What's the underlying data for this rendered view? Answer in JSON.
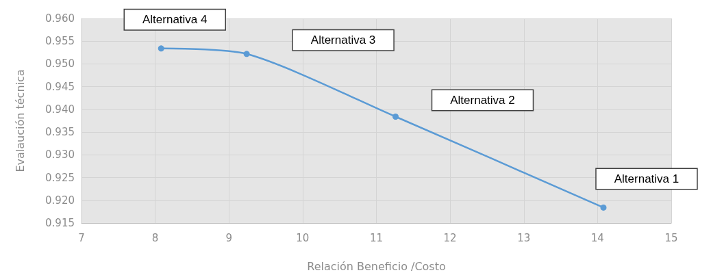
{
  "chart_data": {
    "type": "line",
    "xlabel": "Relación Beneficio /Costo",
    "ylabel": "Evalaución técnica",
    "series": [
      {
        "color": "#5b9bd5",
        "x": [
          8.08,
          9.24,
          11.26,
          14.08
        ],
        "values": [
          0.9534,
          0.9522,
          0.9384,
          0.9184
        ]
      }
    ],
    "xlim": [
      7,
      15
    ],
    "xticks": [
      7,
      8,
      9,
      10,
      11,
      12,
      13,
      14,
      15
    ],
    "ylim": [
      0.915,
      0.96
    ],
    "yticks": [
      {
        "value": 0.915,
        "label": "0.915"
      },
      {
        "value": 0.92,
        "label": "0.920"
      },
      {
        "value": 0.925,
        "label": "0.925"
      },
      {
        "value": 0.93,
        "label": "0.930"
      },
      {
        "value": 0.935,
        "label": "0.935"
      },
      {
        "value": 0.94,
        "label": "0.940"
      },
      {
        "value": 0.945,
        "label": "0.945"
      },
      {
        "value": 0.95,
        "label": "0.950"
      },
      {
        "value": 0.955,
        "label": "0.955"
      },
      {
        "value": 0.96,
        "label": "0.960"
      }
    ],
    "annotations": [
      "Alternativa 4",
      "Alternativa 3",
      "Alternativa 2",
      "Alternativa 1"
    ],
    "grid": true,
    "marker": "circle",
    "line_style": "solid"
  }
}
